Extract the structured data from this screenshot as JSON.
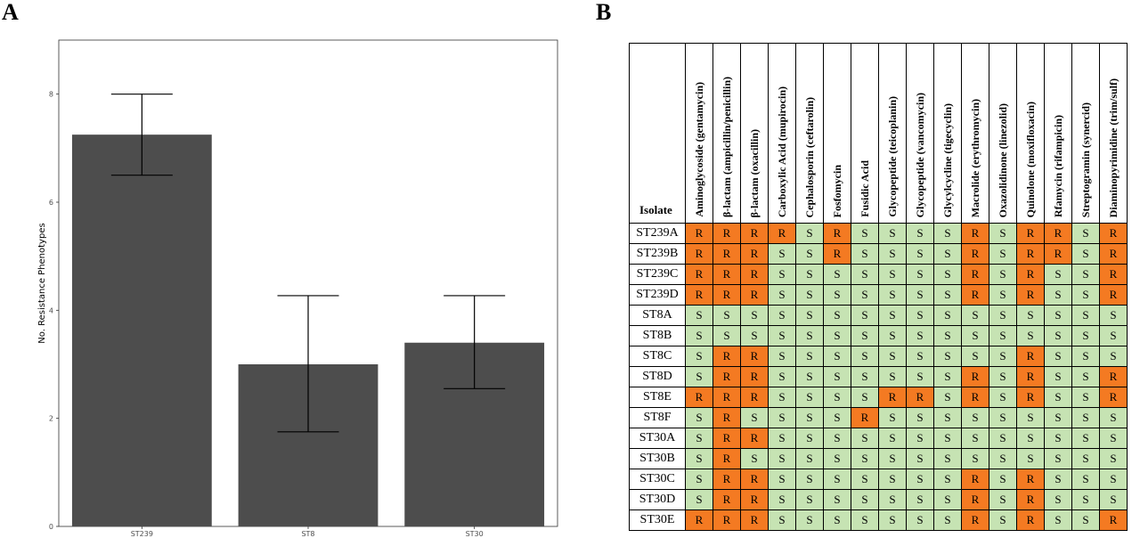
{
  "panels": {
    "a_label": "A",
    "b_label": "B"
  },
  "colors": {
    "bar": "#4d4d4d",
    "resistant": "#f47a22",
    "susceptible": "#c6e3b3"
  },
  "chart_data": {
    "type": "bar",
    "categories": [
      "ST239",
      "ST8",
      "ST30"
    ],
    "values": [
      7.25,
      3.0,
      3.4
    ],
    "error_low": [
      6.5,
      1.75,
      2.55
    ],
    "error_high": [
      8.0,
      4.27,
      4.27
    ],
    "ylabel": "No. Resistance Phenotypes",
    "xlabel": "",
    "ylim": [
      0,
      9.0
    ],
    "yticks": [
      "0",
      "2",
      "4",
      "6",
      "8"
    ],
    "grid": false,
    "legend": "none"
  },
  "table": {
    "isolate_header": "Isolate",
    "antibiotics": [
      "Aminoglycoside (gentamycin)",
      "β-lactam (ampicillin/penicillin)",
      "β-lactam (oxacillin)",
      "Carboxylic Acid (mupirocin)",
      "Cephalosporin (ceftarolin)",
      "Fosfomycin",
      "Fusidic Acid",
      "Glycopeptide (teicoplanin)",
      "Glycopeptide (vancomycin)",
      "Glycylcycline (tigecyclin)",
      "Macrolide (erythromycin)",
      "Oxazolidinone (linezolid)",
      "Quinolone (moxifloxacin)",
      "Rfamycin (rifampicin)",
      "Streptogramin (synercid)",
      "Diaminopyrimidine (trim/sulf)"
    ],
    "rows": [
      {
        "isolate": "ST239A",
        "calls": [
          "R",
          "R",
          "R",
          "R",
          "S",
          "R",
          "S",
          "S",
          "S",
          "S",
          "R",
          "S",
          "R",
          "R",
          "S",
          "R"
        ]
      },
      {
        "isolate": "ST239B",
        "calls": [
          "R",
          "R",
          "R",
          "S",
          "S",
          "R",
          "S",
          "S",
          "S",
          "S",
          "R",
          "S",
          "R",
          "R",
          "S",
          "R"
        ]
      },
      {
        "isolate": "ST239C",
        "calls": [
          "R",
          "R",
          "R",
          "S",
          "S",
          "S",
          "S",
          "S",
          "S",
          "S",
          "R",
          "S",
          "R",
          "S",
          "S",
          "R"
        ]
      },
      {
        "isolate": "ST239D",
        "calls": [
          "R",
          "R",
          "R",
          "S",
          "S",
          "S",
          "S",
          "S",
          "S",
          "S",
          "R",
          "S",
          "R",
          "S",
          "S",
          "R"
        ]
      },
      {
        "isolate": "ST8A",
        "calls": [
          "S",
          "S",
          "S",
          "S",
          "S",
          "S",
          "S",
          "S",
          "S",
          "S",
          "S",
          "S",
          "S",
          "S",
          "S",
          "S"
        ]
      },
      {
        "isolate": "ST8B",
        "calls": [
          "S",
          "S",
          "S",
          "S",
          "S",
          "S",
          "S",
          "S",
          "S",
          "S",
          "S",
          "S",
          "S",
          "S",
          "S",
          "S"
        ]
      },
      {
        "isolate": "ST8C",
        "calls": [
          "S",
          "R",
          "R",
          "S",
          "S",
          "S",
          "S",
          "S",
          "S",
          "S",
          "S",
          "S",
          "R",
          "S",
          "S",
          "S"
        ]
      },
      {
        "isolate": "ST8D",
        "calls": [
          "S",
          "R",
          "R",
          "S",
          "S",
          "S",
          "S",
          "S",
          "S",
          "S",
          "R",
          "S",
          "R",
          "S",
          "S",
          "R"
        ]
      },
      {
        "isolate": "ST8E",
        "calls": [
          "R",
          "R",
          "R",
          "S",
          "S",
          "S",
          "S",
          "R",
          "R",
          "S",
          "R",
          "S",
          "R",
          "S",
          "S",
          "R"
        ]
      },
      {
        "isolate": "ST8F",
        "calls": [
          "S",
          "R",
          "S",
          "S",
          "S",
          "S",
          "R",
          "S",
          "S",
          "S",
          "S",
          "S",
          "S",
          "S",
          "S",
          "S"
        ]
      },
      {
        "isolate": "ST30A",
        "calls": [
          "S",
          "R",
          "R",
          "S",
          "S",
          "S",
          "S",
          "S",
          "S",
          "S",
          "S",
          "S",
          "S",
          "S",
          "S",
          "S"
        ]
      },
      {
        "isolate": "ST30B",
        "calls": [
          "S",
          "R",
          "S",
          "S",
          "S",
          "S",
          "S",
          "S",
          "S",
          "S",
          "S",
          "S",
          "S",
          "S",
          "S",
          "S"
        ]
      },
      {
        "isolate": "ST30C",
        "calls": [
          "S",
          "R",
          "R",
          "S",
          "S",
          "S",
          "S",
          "S",
          "S",
          "S",
          "R",
          "S",
          "R",
          "S",
          "S",
          "S"
        ]
      },
      {
        "isolate": "ST30D",
        "calls": [
          "S",
          "R",
          "R",
          "S",
          "S",
          "S",
          "S",
          "S",
          "S",
          "S",
          "R",
          "S",
          "R",
          "S",
          "S",
          "S"
        ]
      },
      {
        "isolate": "ST30E",
        "calls": [
          "R",
          "R",
          "R",
          "S",
          "S",
          "S",
          "S",
          "S",
          "S",
          "S",
          "R",
          "S",
          "R",
          "S",
          "S",
          "R"
        ]
      }
    ]
  }
}
